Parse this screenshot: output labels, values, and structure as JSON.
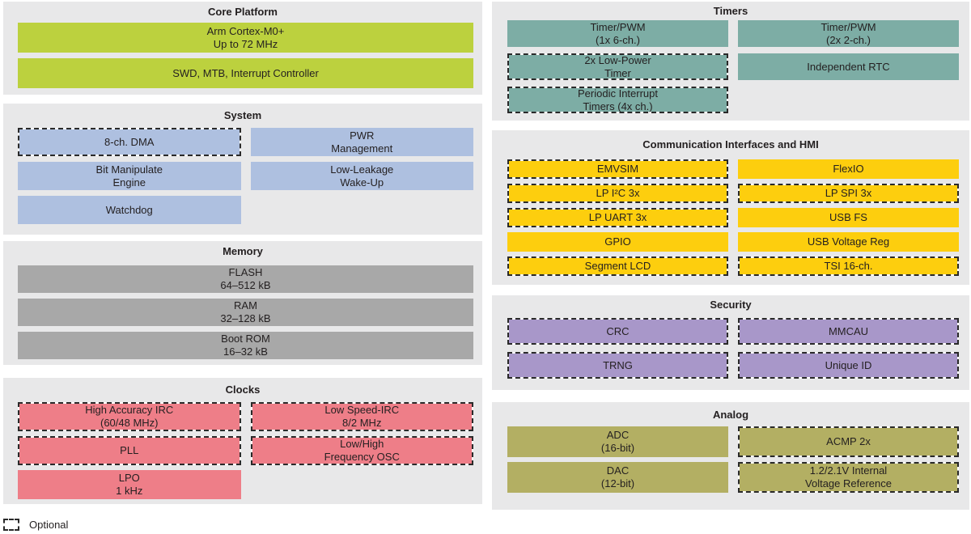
{
  "colors": {
    "section_bg": "#e8e8e9",
    "green": "#bcd13e",
    "blue": "#aec0e0",
    "gray": "#a8a8a8",
    "pink": "#ee7e88",
    "teal": "#7dada5",
    "yellow": "#fdce0e",
    "purple": "#a897c9",
    "olive": "#b3af63",
    "text": "#231f20"
  },
  "legend": {
    "label": "Optional"
  },
  "sections": {
    "core_platform": {
      "title": "Core Platform",
      "blocks": {
        "cortex": {
          "label": "Arm Cortex-M0+\nUp to 72 MHz",
          "optional": false
        },
        "swd": {
          "label": "SWD, MTB, Interrupt Controller",
          "optional": false
        }
      }
    },
    "system": {
      "title": "System",
      "blocks": {
        "dma": {
          "label": "8-ch. DMA",
          "optional": true
        },
        "pwr": {
          "label": "PWR\nManagement",
          "optional": false
        },
        "bit_manipulate": {
          "label": "Bit Manipulate\nEngine",
          "optional": false
        },
        "llwu": {
          "label": "Low-Leakage\nWake-Up",
          "optional": false
        },
        "watchdog": {
          "label": "Watchdog",
          "optional": false
        }
      }
    },
    "memory": {
      "title": "Memory",
      "blocks": {
        "flash": {
          "label": "FLASH\n64–512 kB",
          "optional": false
        },
        "ram": {
          "label": "RAM\n32–128 kB",
          "optional": false
        },
        "boot_rom": {
          "label": "Boot ROM\n16–32 kB",
          "optional": false
        }
      }
    },
    "clocks": {
      "title": "Clocks",
      "blocks": {
        "hirc": {
          "label": "High Accuracy IRC\n(60/48 MHz)",
          "optional": true
        },
        "lirc": {
          "label": "Low Speed-IRC\n8/2 MHz",
          "optional": true
        },
        "pll": {
          "label": "PLL",
          "optional": true
        },
        "osc": {
          "label": "Low/High\nFrequency OSC",
          "optional": true
        },
        "lpo": {
          "label": "LPO\n1 kHz",
          "optional": false
        }
      }
    },
    "timers": {
      "title": "Timers",
      "blocks": {
        "tpm_6ch": {
          "label": "Timer/PWM\n(1x 6-ch.)",
          "optional": false
        },
        "tpm_2ch": {
          "label": "Timer/PWM\n(2x 2-ch.)",
          "optional": false
        },
        "lptmr": {
          "label": "2x Low-Power\nTimer",
          "optional": true
        },
        "rtc": {
          "label": "Independent RTC",
          "optional": false
        },
        "pit": {
          "label": "Periodic Interrupt\nTimers (4x ch.)",
          "optional": true
        }
      }
    },
    "communication": {
      "title": "Communication Interfaces and HMI",
      "blocks": {
        "emvsim": {
          "label": "EMVSIM",
          "optional": true
        },
        "flexio": {
          "label": "FlexIO",
          "optional": false
        },
        "lpi2c": {
          "label": "LP I²C 3x",
          "optional": true
        },
        "lpspi": {
          "label": "LP SPI 3x",
          "optional": true
        },
        "lpuart": {
          "label": "LP UART 3x",
          "optional": true
        },
        "usb_fs": {
          "label": "USB FS",
          "optional": false
        },
        "gpio": {
          "label": "GPIO",
          "optional": false
        },
        "usb_reg": {
          "label": "USB Voltage Reg",
          "optional": false
        },
        "slcd": {
          "label": "Segment LCD",
          "optional": true
        },
        "tsi": {
          "label": "TSI 16-ch.",
          "optional": true
        }
      }
    },
    "security": {
      "title": "Security",
      "blocks": {
        "crc": {
          "label": "CRC",
          "optional": true
        },
        "mmcau": {
          "label": "MMCAU",
          "optional": true
        },
        "trng": {
          "label": "TRNG",
          "optional": true
        },
        "uid": {
          "label": "Unique ID",
          "optional": true
        }
      }
    },
    "analog": {
      "title": "Analog",
      "blocks": {
        "adc": {
          "label": "ADC\n(16-bit)",
          "optional": false
        },
        "acmp": {
          "label": "ACMP 2x",
          "optional": true
        },
        "dac": {
          "label": "DAC\n(12-bit)",
          "optional": false
        },
        "vref": {
          "label": "1.2/2.1V Internal\nVoltage Reference",
          "optional": true
        }
      }
    }
  }
}
